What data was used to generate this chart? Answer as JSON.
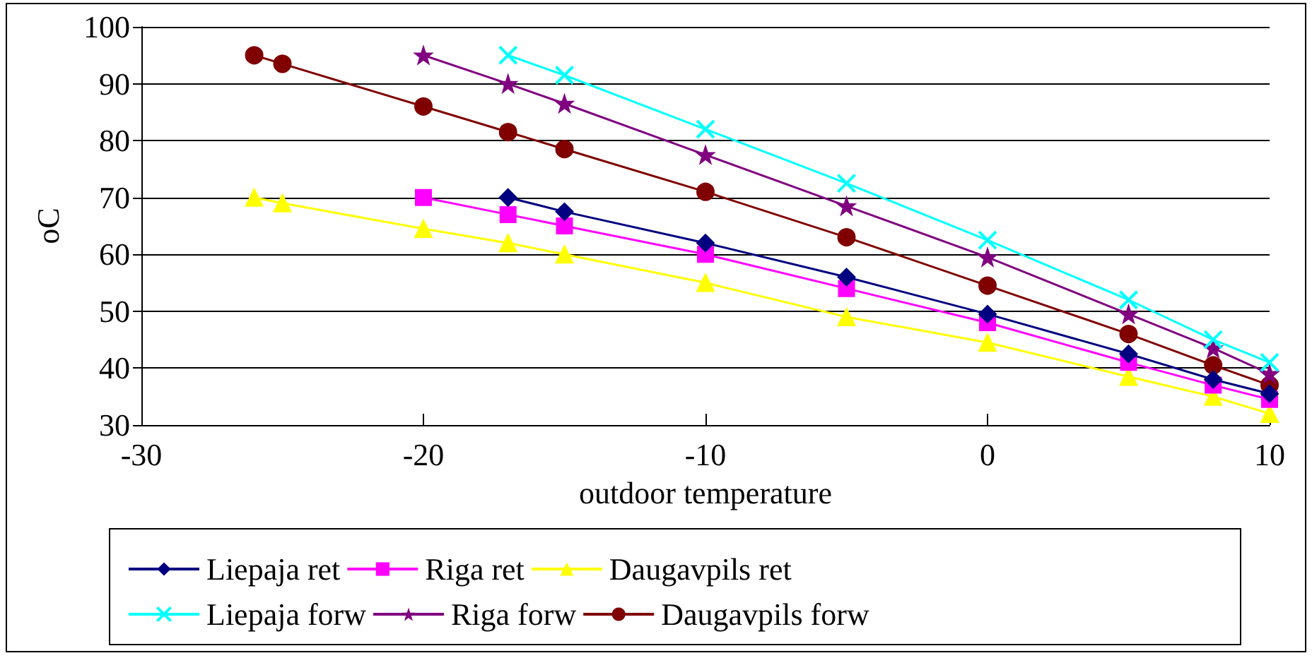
{
  "chart_data": {
    "type": "line",
    "xlabel": "outdoor temperature",
    "ylabel": "oC",
    "xlim": [
      -30,
      10
    ],
    "xticks": [
      -30,
      -20,
      -10,
      0,
      10
    ],
    "ylim": [
      30,
      100
    ],
    "yticks": [
      30,
      40,
      50,
      60,
      70,
      80,
      90,
      100
    ],
    "grid": "y",
    "legend": "bottom",
    "series": [
      {
        "name": "Liepaja ret",
        "color": "#000080",
        "marker": "diamond",
        "x": [
          -17,
          -15,
          -10,
          -5,
          0,
          5,
          8,
          10
        ],
        "values": [
          70,
          67.5,
          62,
          56,
          49.5,
          42.5,
          38,
          35.5
        ]
      },
      {
        "name": "Riga ret",
        "color": "#ff00ff",
        "marker": "square",
        "x": [
          -20,
          -17,
          -15,
          -10,
          -5,
          0,
          5,
          8,
          10
        ],
        "values": [
          70,
          67,
          65,
          60,
          54,
          48,
          41,
          37,
          34.5
        ]
      },
      {
        "name": "Daugavpils ret",
        "color": "#ffff00",
        "marker": "triangle",
        "x": [
          -26,
          -25,
          -20,
          -17,
          -15,
          -10,
          -5,
          0,
          5,
          8,
          10
        ],
        "values": [
          70,
          69,
          64.5,
          62,
          60,
          55,
          49,
          44.5,
          38.5,
          35,
          32
        ]
      },
      {
        "name": "Liepaja forw",
        "color": "#00ffff",
        "marker": "cross",
        "x": [
          -17,
          -15,
          -10,
          -5,
          0,
          5,
          8,
          10
        ],
        "values": [
          95,
          91.5,
          82,
          72.5,
          62.5,
          52,
          45,
          41
        ]
      },
      {
        "name": "Riga forw",
        "color": "#800080",
        "marker": "star",
        "x": [
          -20,
          -17,
          -15,
          -10,
          -5,
          0,
          5,
          8,
          10
        ],
        "values": [
          95,
          90,
          86.5,
          77.5,
          68.5,
          59.5,
          49.5,
          43.5,
          39
        ]
      },
      {
        "name": "Daugavpils forw",
        "color": "#800000",
        "marker": "circle",
        "x": [
          -26,
          -25,
          -20,
          -17,
          -15,
          -10,
          -5,
          0,
          5,
          8,
          10
        ],
        "values": [
          95,
          93.5,
          86,
          81.5,
          78.5,
          71,
          63,
          54.5,
          46,
          40.5,
          37
        ]
      }
    ]
  }
}
